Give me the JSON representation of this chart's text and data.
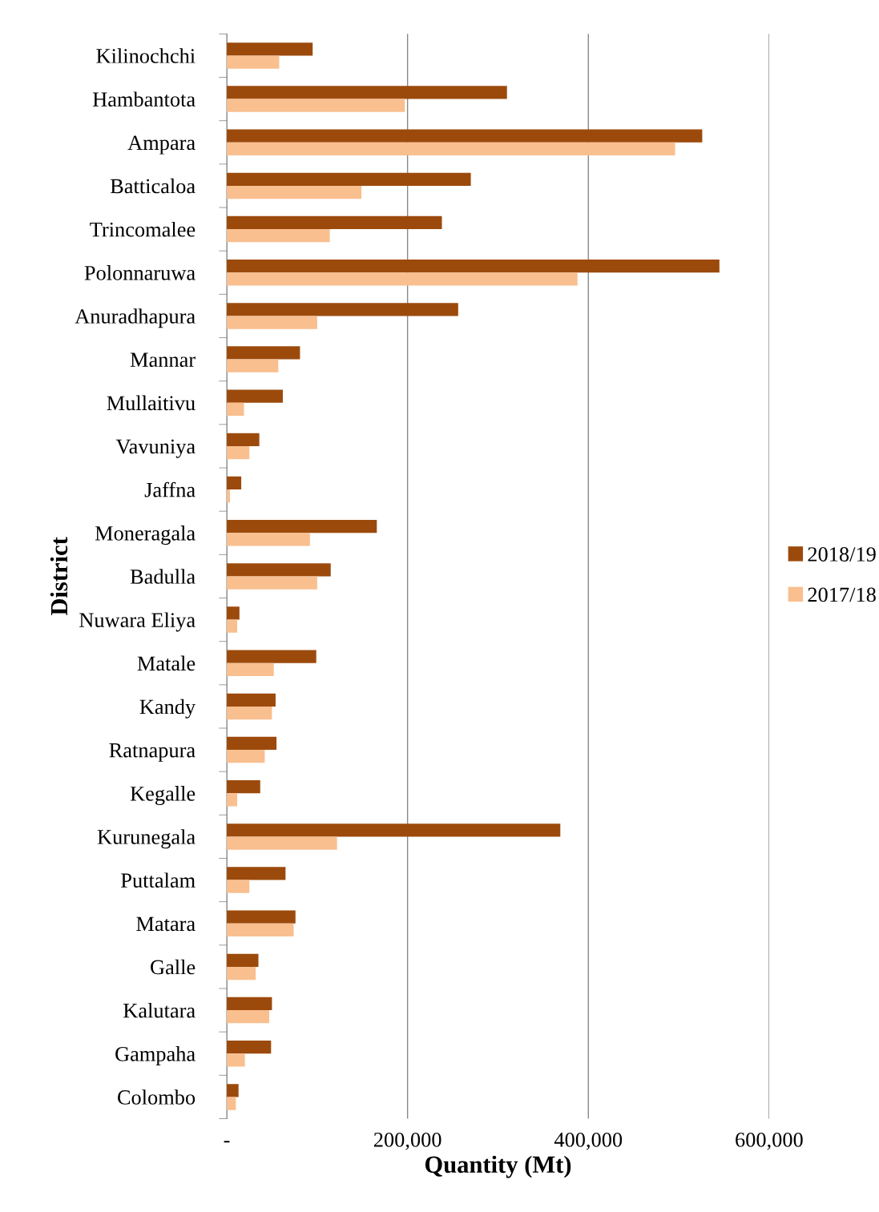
{
  "chart_data": {
    "type": "bar",
    "orientation": "horizontal",
    "xlabel": "Quantity (Mt)",
    "ylabel": "District",
    "categories": [
      "Kilinochchi",
      "Hambantota",
      "Ampara",
      "Batticaloa",
      "Trincomalee",
      "Polonnaruwa",
      "Anuradhapura",
      "Mannar",
      "Mullaitivu",
      "Vavuniya",
      "Jaffna",
      "Moneragala",
      "Badulla",
      "Nuwara Eliya",
      "Matale",
      "Kandy",
      "Ratnapura",
      "Kegalle",
      "Kurunegala",
      "Puttalam",
      "Matara",
      "Galle",
      "Kalutara",
      "Gampaha",
      "Colombo"
    ],
    "series": [
      {
        "name": "2018/19",
        "color": "#9c4a0c",
        "values": [
          95000,
          310000,
          526000,
          270000,
          238000,
          545000,
          256000,
          81000,
          62000,
          36000,
          16000,
          166000,
          115000,
          14000,
          99000,
          54000,
          55000,
          37000,
          369000,
          65000,
          76000,
          35000,
          50000,
          49000,
          13000
        ]
      },
      {
        "name": "2017/18",
        "color": "#f9bf8f",
        "values": [
          58000,
          197000,
          496000,
          149000,
          114000,
          388000,
          100000,
          57000,
          19000,
          25000,
          3500,
          92000,
          100000,
          11500,
          52000,
          50000,
          42000,
          11500,
          122000,
          25000,
          74000,
          32000,
          47000,
          20000,
          10000
        ]
      }
    ],
    "xlim": [
      0,
      600000
    ],
    "xticks": [
      {
        "value": 0,
        "label": "-"
      },
      {
        "value": 200000,
        "label": "200,000"
      },
      {
        "value": 400000,
        "label": "400,000"
      },
      {
        "value": 600000,
        "label": "600,000"
      }
    ],
    "grid": "x",
    "legend": "right"
  }
}
